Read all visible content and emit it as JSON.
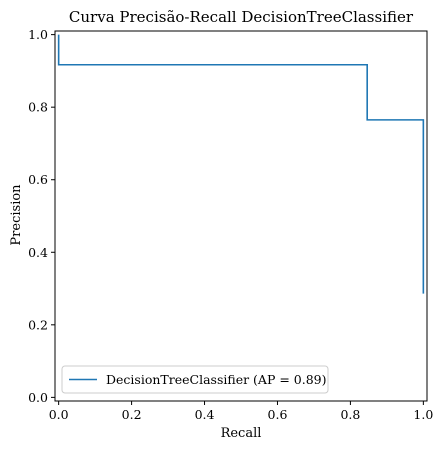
{
  "chart_data": {
    "type": "line",
    "title": "Curva Precisão-Recall DecisionTreeClassifier",
    "xlabel": "Recall",
    "ylabel": "Precision",
    "xlim": [
      -0.01,
      1.01
    ],
    "ylim": [
      -0.01,
      1.01
    ],
    "xticks": [
      0.0,
      0.2,
      0.4,
      0.6,
      0.8,
      1.0
    ],
    "xtick_labels": [
      "0.0",
      "0.2",
      "0.4",
      "0.6",
      "0.8",
      "1.0"
    ],
    "yticks": [
      0.0,
      0.2,
      0.4,
      0.6,
      0.8,
      1.0
    ],
    "ytick_labels": [
      "0.0",
      "0.2",
      "0.4",
      "0.6",
      "0.8",
      "1.0"
    ],
    "grid": false,
    "legend_position": "lower-left",
    "series": [
      {
        "name": "DecisionTreeClassifier (AP = 0.89)",
        "color": "#1f77b4",
        "drawstyle": "steps-post",
        "x": [
          0.0,
          0.0,
          0.846,
          0.846,
          1.0,
          1.0
        ],
        "y": [
          1.0,
          0.917,
          0.917,
          0.765,
          0.765,
          0.286
        ]
      }
    ]
  }
}
